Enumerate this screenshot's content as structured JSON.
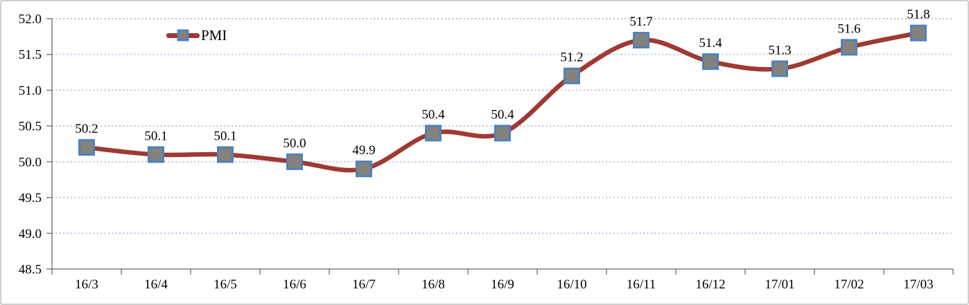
{
  "chart_data": {
    "type": "line",
    "title": "",
    "categories": [
      "16/3",
      "16/4",
      "16/5",
      "16/6",
      "16/7",
      "16/8",
      "16/9",
      "16/10",
      "16/11",
      "16/12",
      "17/01",
      "17/02",
      "17/03"
    ],
    "series": [
      {
        "name": "PMI",
        "values": [
          50.2,
          50.1,
          50.1,
          50.0,
          49.9,
          50.4,
          50.4,
          51.2,
          51.7,
          51.4,
          51.3,
          51.6,
          51.8
        ]
      }
    ],
    "data_labels": [
      "50.2",
      "50.1",
      "50.1",
      "50.0",
      "49.9",
      "50.4",
      "50.4",
      "51.2",
      "51.7",
      "51.4",
      "51.3",
      "51.6",
      "51.8"
    ],
    "ylabel": "",
    "xlabel": "",
    "ylim": [
      48.5,
      52.0
    ],
    "ytick_step": 0.5,
    "ytick_labels": [
      "52.0",
      "51.5",
      "51.0",
      "50.5",
      "50.0",
      "49.5",
      "49.0",
      "48.5"
    ],
    "grid": "horizontal-dotted",
    "line_smoothing": true,
    "legend_position": "inside-top-left",
    "marker_shape": "square",
    "colors": {
      "line": "#9e3a33",
      "marker_fill": "#83837b",
      "marker_border": "#4f81bd",
      "gridline": "#aebfd8",
      "axis": "#7f7f7f",
      "text": "#000000",
      "background": "#ffffff",
      "frame_border": "#cfcfcf"
    }
  }
}
